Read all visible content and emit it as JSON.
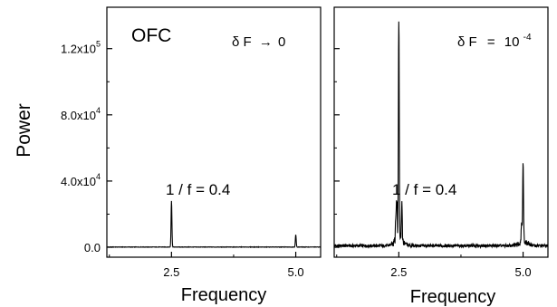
{
  "chart_data": [
    {
      "type": "line",
      "panel_label": "OFC",
      "condition_prefix": "δ F",
      "condition_arrow": "→",
      "condition_value": "0",
      "annotation": "1 / f = 0.4",
      "xlabel": "Frequency",
      "ylabel": "Power",
      "xlim": [
        1.2,
        5.5
      ],
      "ylim": [
        -6000,
        145000
      ],
      "x_ticks": [
        2.5,
        5.0
      ],
      "x_tick_labels": [
        "2.5",
        "5.0"
      ],
      "y_ticks": [
        0,
        40000,
        80000,
        120000
      ],
      "y_tick_labels": [
        "0.0",
        "4.0x10",
        "8.0x10",
        "1.2x10"
      ],
      "y_tick_exponents": [
        "",
        "4",
        "4",
        "5"
      ],
      "peaks": [
        {
          "x": 2.5,
          "y": 28000
        },
        {
          "x": 5.0,
          "y": 7500
        }
      ]
    },
    {
      "type": "line",
      "condition_prefix": "δ F",
      "condition_equals": "=",
      "condition_value": "10",
      "condition_exponent": "-4",
      "annotation": "1 / f = 0.4",
      "xlabel": "Frequency",
      "xlim": [
        1.2,
        5.5
      ],
      "ylim": [
        -6000,
        145000
      ],
      "x_ticks": [
        2.5,
        5.0
      ],
      "x_tick_labels": [
        "2.5",
        "5.0"
      ],
      "peaks": [
        {
          "x": 2.5,
          "y": 134000
        },
        {
          "x": 2.46,
          "y": 25000
        },
        {
          "x": 2.44,
          "y": 16000
        },
        {
          "x": 2.56,
          "y": 20000
        },
        {
          "x": 5.0,
          "y": 49000
        },
        {
          "x": 4.97,
          "y": 13000
        }
      ]
    }
  ]
}
